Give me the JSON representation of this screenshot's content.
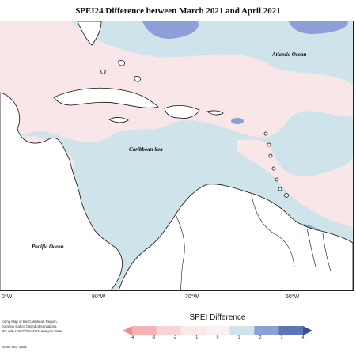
{
  "title": "SPEI24 Difference between March 2021 and April 2021",
  "labels": {
    "atlantic": "Atlantic Ocean",
    "caribbean": "Caribbean Sea",
    "pacific": "Pacific Ocean"
  },
  "axis": {
    "lon_ticks": [
      "0°W",
      "80°W",
      "70°W",
      "60°W"
    ]
  },
  "legend": {
    "title": "SPEI Difference",
    "ticks": [
      "-4",
      "-3",
      "-2",
      "-1",
      "0",
      "1",
      "2",
      "3",
      "4"
    ],
    "colors": [
      "#f28b8e",
      "#f5b3b6",
      "#f8d4d6",
      "#fbe8ea",
      "#fbf1f2",
      "#cfe3ea",
      "#8aa0d6",
      "#5d77b6",
      "#3b4e8f"
    ]
  },
  "credit": {
    "lines": [
      "toring Map of the Caribbean Region.",
      "egrating station based observations,",
      "OF, with NCEP/NCAR Reanalysis Data."
    ],
    "copyright": "CIMH May-2021"
  },
  "colors": {
    "ocean_base": "#cfe3ea",
    "positive_light": "#f8e6e8",
    "negative_medium": "#8c9fd9",
    "land": "#ffffff",
    "frame": "#222222"
  }
}
